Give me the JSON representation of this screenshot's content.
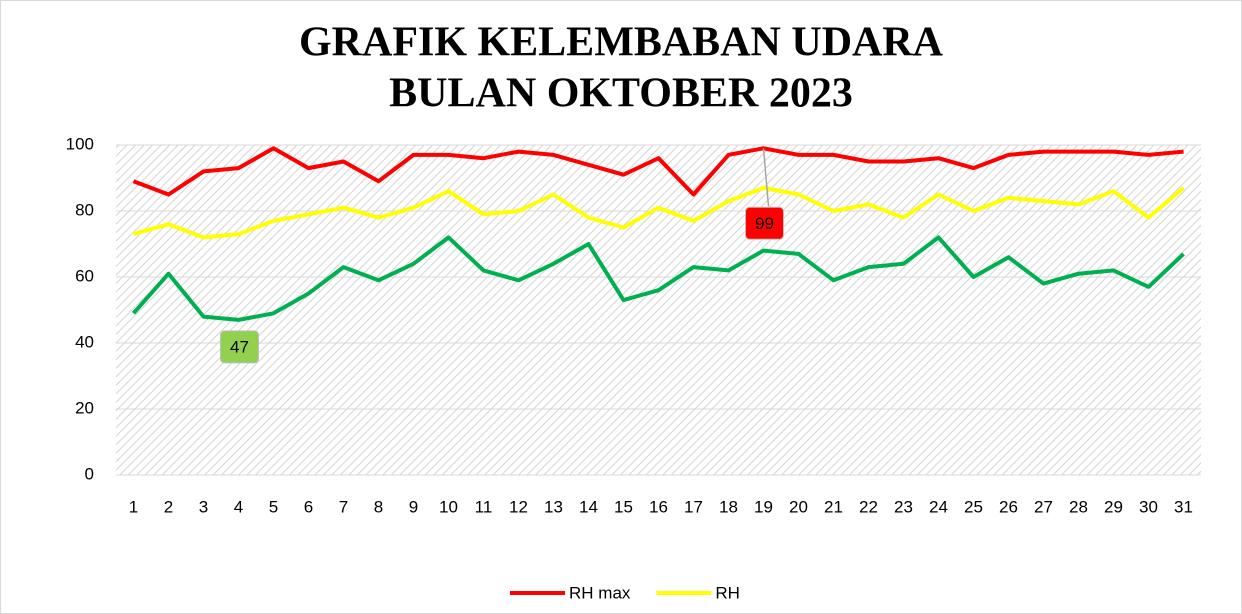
{
  "chart_data": {
    "type": "line",
    "title_lines": [
      "GRAFIK KELEMBABAN UDARA",
      "BULAN OKTOBER 2023"
    ],
    "categories": [
      "1",
      "2",
      "3",
      "4",
      "5",
      "6",
      "7",
      "8",
      "9",
      "10",
      "11",
      "12",
      "13",
      "14",
      "15",
      "16",
      "17",
      "18",
      "19",
      "20",
      "21",
      "22",
      "23",
      "24",
      "25",
      "26",
      "27",
      "28",
      "29",
      "30",
      "31"
    ],
    "series": [
      {
        "name": "RH max",
        "color": "#ff0000",
        "values": [
          89,
          85,
          92,
          93,
          99,
          93,
          95,
          89,
          97,
          97,
          96,
          98,
          97,
          94,
          91,
          96,
          85,
          97,
          99,
          97,
          97,
          95,
          95,
          96,
          93,
          97,
          98,
          98,
          98,
          97,
          98
        ]
      },
      {
        "name": "RH",
        "color": "#ffff00",
        "values": [
          73,
          76,
          72,
          73,
          77,
          79,
          81,
          78,
          81,
          86,
          79,
          80,
          85,
          78,
          75,
          81,
          77,
          83,
          87,
          85,
          80,
          82,
          78,
          85,
          80,
          84,
          83,
          82,
          86,
          78,
          87
        ]
      },
      {
        "color": "#00b050",
        "values": [
          49,
          61,
          48,
          47,
          49,
          55,
          63,
          59,
          64,
          72,
          62,
          59,
          64,
          70,
          53,
          56,
          63,
          62,
          68,
          67,
          59,
          63,
          64,
          72,
          60,
          66,
          58,
          61,
          62,
          57,
          67
        ]
      }
    ],
    "annotations": [
      {
        "text": "99",
        "category": "19",
        "color": "#ff0000"
      },
      {
        "text": "47",
        "category": "4",
        "color": "#92d050"
      }
    ],
    "ylim": [
      0,
      100
    ],
    "yticks": [
      0,
      20,
      40,
      60,
      80,
      100
    ],
    "grid": true,
    "legend": "bottom"
  }
}
